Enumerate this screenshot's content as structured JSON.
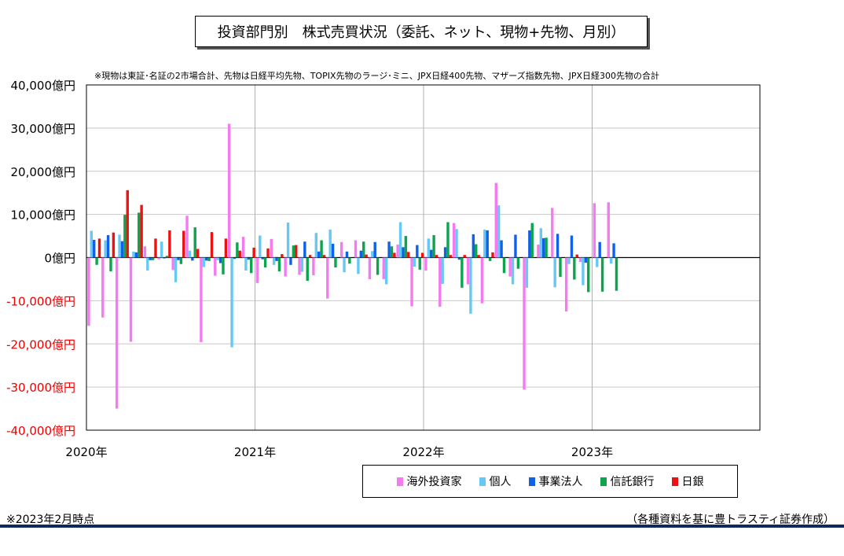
{
  "title": "投資部門別　株式売買状況（委託、ネット、現物+先物、月別）",
  "note_top": "※現物は東証･名証の2市場合計、先物は日経平均先物、TOPIX先物のラージ･ミニ、JPX日経400先物、マザーズ指数先物、JPX日経300先物の合計",
  "note_bottom": "※2023年2月時点",
  "source": "（各種資料を基に豊トラスティ証券作成）",
  "chart_data": {
    "type": "bar",
    "ylim": [
      -40000,
      40000
    ],
    "yticks": [
      "40,000億円",
      "30,000億円",
      "20,000億円",
      "10,000億円",
      "0億円",
      "-10,000億円",
      "-20,000億円",
      "-30,000億円",
      "-40,000億円"
    ],
    "xticks": [
      "2020年",
      "2021年",
      "2022年",
      "2023年"
    ],
    "grid": true,
    "legend_position": "bottom",
    "colors": {
      "foreign": "#f57af0",
      "individual": "#66c8f5",
      "corporate": "#1060e8",
      "trust": "#0da44e",
      "boj": "#ee1111"
    },
    "categories": [
      "2020-01",
      "2020-02",
      "2020-03",
      "2020-04",
      "2020-05",
      "2020-06",
      "2020-07",
      "2020-08",
      "2020-09",
      "2020-10",
      "2020-11",
      "2020-12",
      "2021-01",
      "2021-02",
      "2021-03",
      "2021-04",
      "2021-05",
      "2021-06",
      "2021-07",
      "2021-08",
      "2021-09",
      "2021-10",
      "2021-11",
      "2021-12",
      "2022-01",
      "2022-02",
      "2022-03",
      "2022-04",
      "2022-05",
      "2022-06",
      "2022-07",
      "2022-08",
      "2022-09",
      "2022-10",
      "2022-11",
      "2022-12",
      "2023-01",
      "2023-02"
    ],
    "series": [
      {
        "name": "海外投資家",
        "key": "foreign",
        "values": [
          -15800,
          -13900,
          -35000,
          -19500,
          2600,
          -400,
          -2900,
          9700,
          -19600,
          -4200,
          31000,
          4800,
          -5900,
          4300,
          -4400,
          -4000,
          -4100,
          -9500,
          3600,
          4000,
          -5000,
          -5000,
          3000,
          -11300,
          -3000,
          -11400,
          8000,
          -6200,
          -10600,
          17300,
          -4400,
          -30600,
          3000,
          11500,
          -12500,
          -1000,
          12600,
          12800
        ]
      },
      {
        "name": "個人",
        "key": "individual",
        "values": [
          6200,
          4000,
          5300,
          1400,
          -3000,
          3700,
          -5700,
          1600,
          -2200,
          -600,
          -20800,
          -3000,
          5100,
          -1700,
          8100,
          -3300,
          5700,
          6500,
          -3400,
          -3800,
          1500,
          -6200,
          8200,
          -2100,
          4400,
          -6100,
          6600,
          -13000,
          6500,
          12100,
          -6200,
          -7000,
          6800,
          -6900,
          -1500,
          -6400,
          -2200,
          -1400
        ]
      },
      {
        "name": "事業法人",
        "key": "corporate",
        "values": [
          4100,
          5200,
          3800,
          1200,
          -600,
          -200,
          -600,
          -700,
          -700,
          -1300,
          -300,
          -500,
          -400,
          -800,
          -1700,
          3700,
          1400,
          3200,
          1400,
          1600,
          3600,
          3700,
          2400,
          2900,
          1800,
          2400,
          -500,
          5400,
          6300,
          4000,
          5300,
          6300,
          4500,
          5500,
          5100,
          -1200,
          3600,
          3300
        ]
      },
      {
        "name": "信託銀行",
        "key": "trust",
        "values": [
          -1700,
          -3200,
          9900,
          10400,
          -600,
          400,
          -1500,
          7000,
          -800,
          -3900,
          3500,
          -3600,
          -2300,
          -3200,
          2800,
          -5400,
          4000,
          -2300,
          -1400,
          3700,
          -4000,
          2600,
          5000,
          -2800,
          5200,
          8200,
          -7000,
          3100,
          -800,
          -3600,
          -2600,
          8000,
          4600,
          -4500,
          -5100,
          -8000,
          -7900,
          -7700
        ]
      },
      {
        "name": "日銀",
        "key": "boj",
        "values": [
          4400,
          5800,
          15600,
          12200,
          4400,
          6300,
          6200,
          2000,
          5900,
          4400,
          1600,
          2300,
          2100,
          800,
          2900,
          600,
          600,
          0,
          0,
          700,
          0,
          1100,
          1300,
          1100,
          600,
          600,
          600,
          600,
          1200,
          0,
          0,
          0,
          0,
          0,
          700,
          0,
          0,
          0
        ]
      }
    ]
  }
}
